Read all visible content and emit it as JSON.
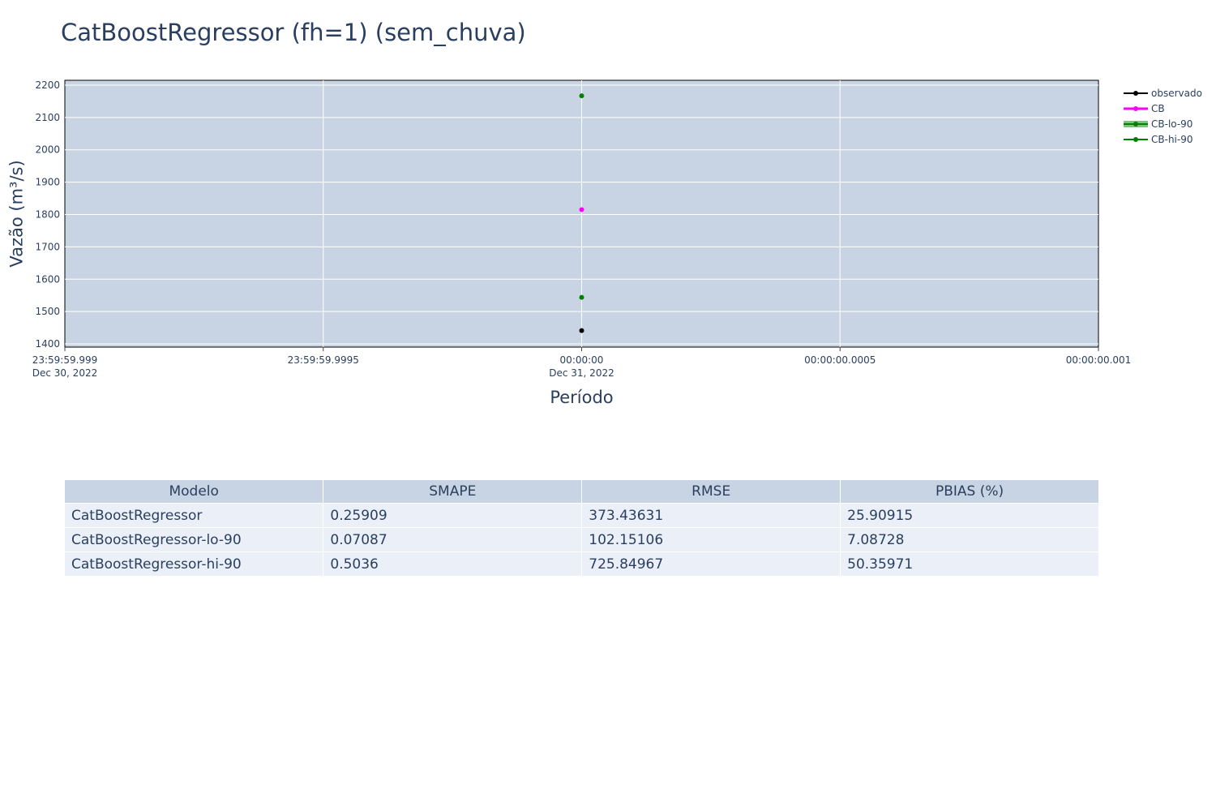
{
  "chart_data": {
    "type": "scatter",
    "title": "CatBoostRegressor (fh=1) (sem_chuva)",
    "xlabel": "Período",
    "ylabel": "Vazão (m³/s)",
    "x_tick_labels": [
      {
        "line1": "23:59:59.999",
        "line2": "Dec 30, 2022"
      },
      {
        "line1": "23:59:59.9995",
        "line2": ""
      },
      {
        "line1": "00:00:00",
        "line2": "Dec 31, 2022"
      },
      {
        "line1": "00:00:00.0005",
        "line2": ""
      },
      {
        "line1": "00:00:00.001",
        "line2": ""
      }
    ],
    "xlim": [
      "2022-12-30T23:59:59.999",
      "2022-12-31T00:00:00.001"
    ],
    "ylim": [
      1390,
      2215
    ],
    "y_ticks": [
      1400,
      1500,
      1600,
      1700,
      1800,
      1900,
      2000,
      2100,
      2200
    ],
    "grid": true,
    "legend_position": "top-right",
    "series": [
      {
        "name": "observado",
        "color": "#000000",
        "x": [
          "2022-12-31T00:00:00"
        ],
        "y": [
          1441
        ]
      },
      {
        "name": "CB",
        "color": "#ff00ff",
        "x": [
          "2022-12-31T00:00:00"
        ],
        "y": [
          1815
        ]
      },
      {
        "name": "CB-lo-90",
        "color": "#008000",
        "x": [
          "2022-12-31T00:00:00"
        ],
        "y": [
          1544
        ]
      },
      {
        "name": "CB-hi-90",
        "color": "#008000",
        "x": [
          "2022-12-31T00:00:00"
        ],
        "y": [
          2167
        ]
      }
    ]
  },
  "table": {
    "headers": [
      "Modelo",
      "SMAPE",
      "RMSE",
      "PBIAS (%)"
    ],
    "rows": [
      [
        "CatBoostRegressor",
        "0.25909",
        "373.43631",
        "25.90915"
      ],
      [
        "CatBoostRegressor-lo-90",
        "0.07087",
        "102.15106",
        "7.08728"
      ],
      [
        "CatBoostRegressor-hi-90",
        "0.5036",
        "725.84967",
        "50.35971"
      ]
    ]
  }
}
